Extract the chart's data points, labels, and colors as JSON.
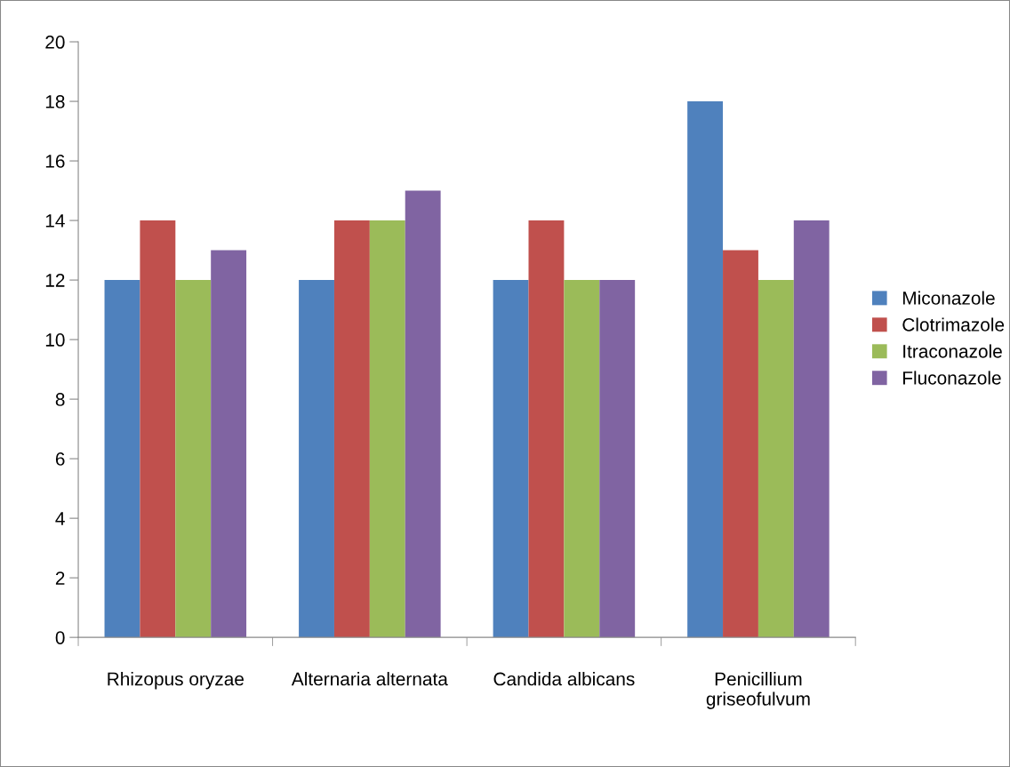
{
  "chart_data": {
    "type": "bar",
    "categories": [
      "Rhizopus oryzae",
      "Alternaria alternata",
      "Candida albicans",
      "Penicillium\ngriseofulvum"
    ],
    "series": [
      {
        "name": "Miconazole",
        "color": "#4f81bd",
        "values": [
          12,
          12,
          12,
          18
        ]
      },
      {
        "name": "Clotrimazole",
        "color": "#c0504d",
        "values": [
          14,
          14,
          14,
          13
        ]
      },
      {
        "name": "Itraconazole",
        "color": "#9bbb59",
        "values": [
          12,
          14,
          12,
          12
        ]
      },
      {
        "name": "Fluconazole",
        "color": "#8064a2",
        "values": [
          13,
          15,
          12,
          14
        ]
      }
    ],
    "ylim": [
      0,
      20
    ],
    "yticks": [
      0,
      2,
      4,
      6,
      8,
      10,
      12,
      14,
      16,
      18,
      20
    ],
    "grid": false,
    "legend": "right"
  }
}
